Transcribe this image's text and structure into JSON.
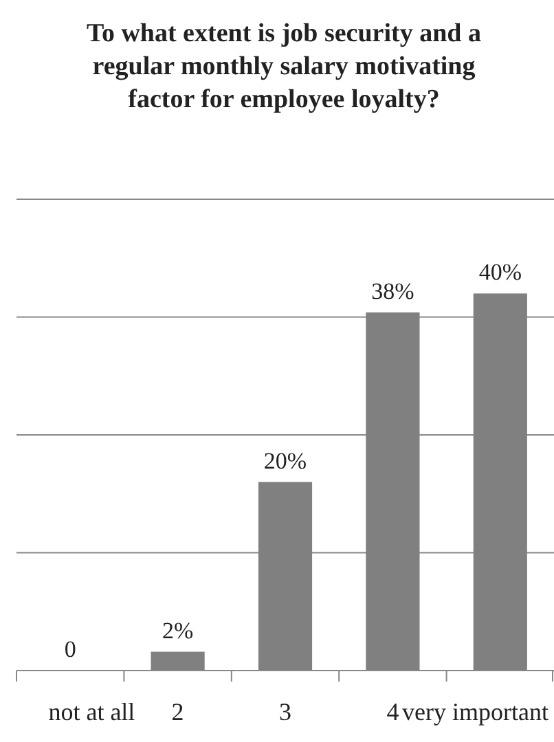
{
  "chart_data": {
    "type": "bar",
    "title": "To what extent is job security and a regular monthly salary motivating factor for employee loyalty?",
    "categories": [
      "not at all",
      "2",
      "3",
      "4",
      "very important"
    ],
    "values": [
      0,
      2,
      20,
      38,
      40
    ],
    "value_labels": [
      "0",
      "2%",
      "20%",
      "38%",
      "40%"
    ],
    "color": "#808080",
    "ylim": [
      0,
      50
    ],
    "yticks": [
      {
        "value": 0,
        "label": null
      },
      {
        "value": 12.5,
        "label": null
      },
      {
        "value": 25,
        "label": null
      },
      {
        "value": 37.5,
        "label": null
      },
      {
        "value": 50,
        "label": null
      }
    ],
    "grid": "y",
    "tick_labels": "x"
  }
}
